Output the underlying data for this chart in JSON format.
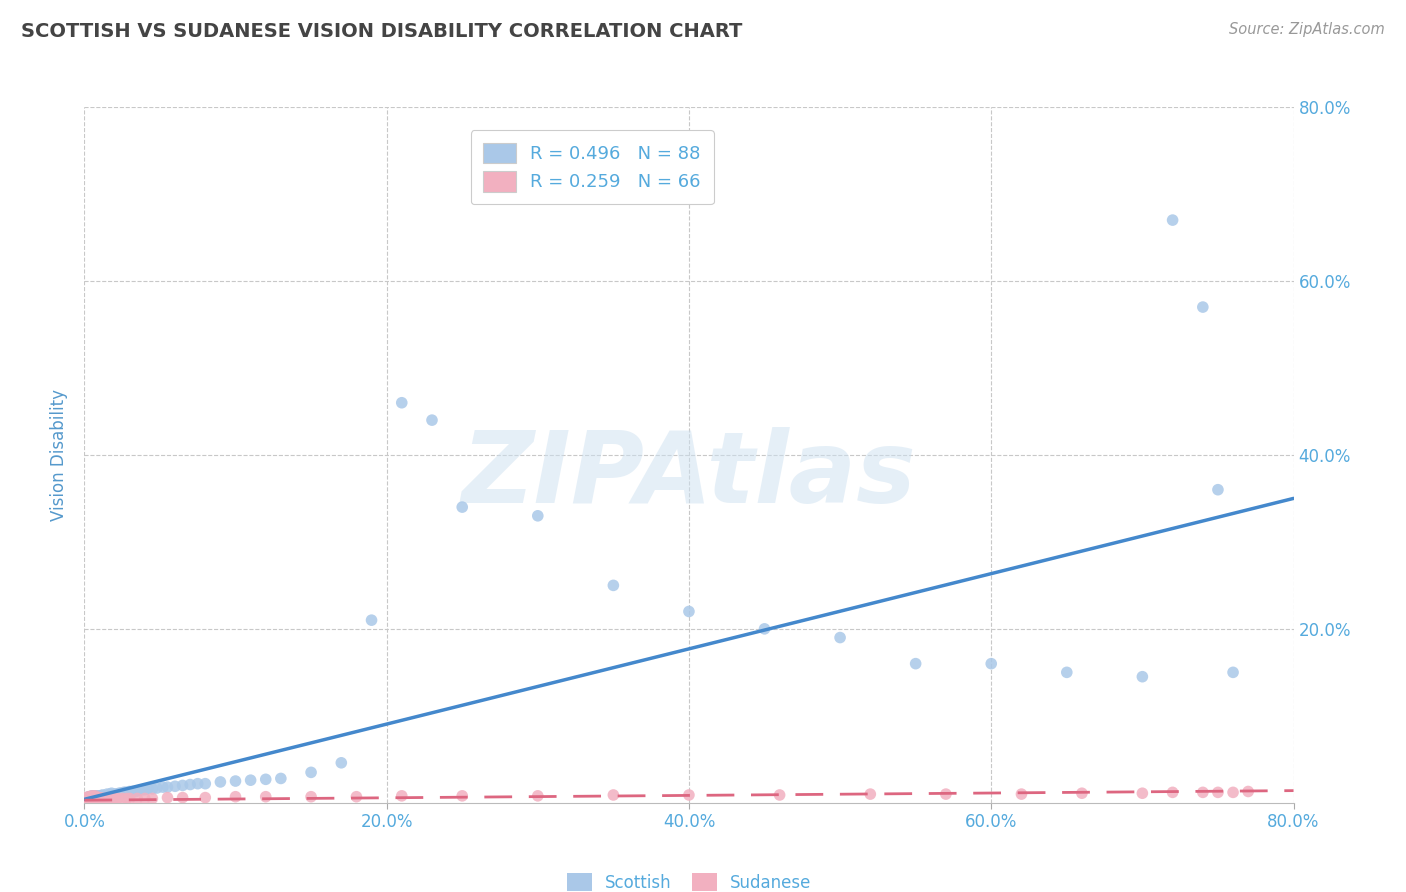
{
  "title": "SCOTTISH VS SUDANESE VISION DISABILITY CORRELATION CHART",
  "source": "Source: ZipAtlas.com",
  "ylabel": "Vision Disability",
  "xlim": [
    0.0,
    0.8
  ],
  "ylim": [
    0.0,
    0.8
  ],
  "xticks": [
    0.0,
    0.2,
    0.4,
    0.6,
    0.8
  ],
  "yticks_right": [
    0.2,
    0.4,
    0.6,
    0.8
  ],
  "xtick_labels": [
    "0.0%",
    "20.0%",
    "40.0%",
    "60.0%",
    "80.0%"
  ],
  "ytick_labels_right": [
    "20.0%",
    "40.0%",
    "60.0%",
    "80.0%"
  ],
  "scottish_R": 0.496,
  "scottish_N": 88,
  "sudanese_R": 0.259,
  "sudanese_N": 66,
  "scottish_color": "#aac8e8",
  "sudanese_color": "#f2b0c0",
  "trend_scottish_color": "#4488cc",
  "trend_sudanese_color": "#dd6680",
  "background_color": "#ffffff",
  "grid_color": "#c8c8c8",
  "title_color": "#444444",
  "axis_label_color": "#5599cc",
  "tick_label_color": "#55aadd",
  "watermark": "ZIPAtlas",
  "scottish_x": [
    0.001,
    0.002,
    0.002,
    0.003,
    0.003,
    0.003,
    0.004,
    0.004,
    0.004,
    0.005,
    0.005,
    0.005,
    0.005,
    0.006,
    0.006,
    0.006,
    0.007,
    0.007,
    0.007,
    0.008,
    0.008,
    0.008,
    0.009,
    0.009,
    0.01,
    0.01,
    0.011,
    0.011,
    0.012,
    0.012,
    0.013,
    0.014,
    0.015,
    0.015,
    0.016,
    0.017,
    0.018,
    0.018,
    0.019,
    0.02,
    0.021,
    0.022,
    0.023,
    0.024,
    0.025,
    0.026,
    0.027,
    0.028,
    0.03,
    0.032,
    0.034,
    0.036,
    0.038,
    0.04,
    0.042,
    0.045,
    0.048,
    0.052,
    0.055,
    0.06,
    0.065,
    0.07,
    0.075,
    0.08,
    0.09,
    0.1,
    0.11,
    0.12,
    0.13,
    0.15,
    0.17,
    0.19,
    0.21,
    0.23,
    0.25,
    0.3,
    0.35,
    0.4,
    0.45,
    0.5,
    0.55,
    0.6,
    0.65,
    0.7,
    0.72,
    0.74,
    0.75,
    0.76
  ],
  "scottish_y": [
    0.005,
    0.004,
    0.006,
    0.004,
    0.005,
    0.007,
    0.004,
    0.005,
    0.007,
    0.004,
    0.005,
    0.006,
    0.008,
    0.004,
    0.006,
    0.008,
    0.005,
    0.006,
    0.008,
    0.005,
    0.006,
    0.008,
    0.005,
    0.007,
    0.006,
    0.008,
    0.006,
    0.008,
    0.006,
    0.009,
    0.008,
    0.008,
    0.007,
    0.01,
    0.008,
    0.01,
    0.008,
    0.011,
    0.009,
    0.01,
    0.01,
    0.01,
    0.011,
    0.011,
    0.01,
    0.012,
    0.012,
    0.012,
    0.013,
    0.013,
    0.013,
    0.014,
    0.015,
    0.015,
    0.016,
    0.016,
    0.017,
    0.018,
    0.018,
    0.019,
    0.02,
    0.021,
    0.022,
    0.022,
    0.024,
    0.025,
    0.026,
    0.027,
    0.028,
    0.035,
    0.046,
    0.21,
    0.46,
    0.44,
    0.34,
    0.33,
    0.25,
    0.22,
    0.2,
    0.19,
    0.16,
    0.16,
    0.15,
    0.145,
    0.67,
    0.57,
    0.36,
    0.15
  ],
  "sudanese_x": [
    0.001,
    0.001,
    0.002,
    0.002,
    0.003,
    0.003,
    0.003,
    0.004,
    0.004,
    0.004,
    0.005,
    0.005,
    0.005,
    0.005,
    0.006,
    0.006,
    0.006,
    0.007,
    0.007,
    0.007,
    0.008,
    0.008,
    0.009,
    0.009,
    0.01,
    0.01,
    0.011,
    0.012,
    0.013,
    0.014,
    0.015,
    0.016,
    0.017,
    0.018,
    0.019,
    0.02,
    0.022,
    0.025,
    0.028,
    0.03,
    0.035,
    0.04,
    0.045,
    0.055,
    0.065,
    0.08,
    0.1,
    0.12,
    0.15,
    0.18,
    0.21,
    0.25,
    0.3,
    0.35,
    0.4,
    0.46,
    0.52,
    0.57,
    0.62,
    0.66,
    0.7,
    0.72,
    0.74,
    0.75,
    0.76,
    0.77
  ],
  "sudanese_y": [
    0.004,
    0.006,
    0.004,
    0.006,
    0.003,
    0.005,
    0.007,
    0.004,
    0.005,
    0.007,
    0.003,
    0.004,
    0.006,
    0.008,
    0.004,
    0.005,
    0.007,
    0.004,
    0.006,
    0.008,
    0.004,
    0.006,
    0.004,
    0.006,
    0.004,
    0.006,
    0.005,
    0.005,
    0.005,
    0.005,
    0.005,
    0.005,
    0.005,
    0.005,
    0.005,
    0.005,
    0.005,
    0.005,
    0.005,
    0.005,
    0.005,
    0.005,
    0.005,
    0.006,
    0.006,
    0.006,
    0.007,
    0.007,
    0.007,
    0.007,
    0.008,
    0.008,
    0.008,
    0.009,
    0.009,
    0.009,
    0.01,
    0.01,
    0.01,
    0.011,
    0.011,
    0.012,
    0.012,
    0.012,
    0.012,
    0.013
  ],
  "scottish_trend_x": [
    0.0,
    0.8
  ],
  "scottish_trend_y": [
    0.004,
    0.35
  ],
  "sudanese_trend_x": [
    0.0,
    0.8
  ],
  "sudanese_trend_y": [
    0.003,
    0.014
  ]
}
